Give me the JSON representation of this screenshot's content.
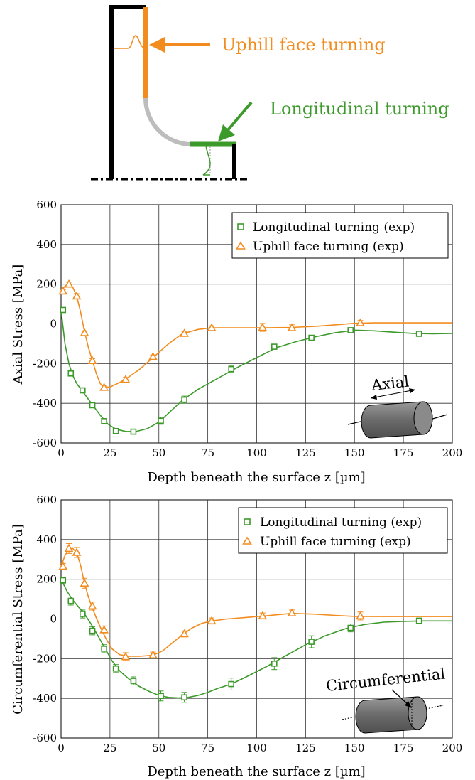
{
  "diagram": {
    "uphill_label": "Uphill face turning",
    "longitudinal_label": "Longitudinal turning",
    "colors": {
      "uphill": "#F28C1E",
      "longitudinal": "#3C9A2B",
      "tool_path": "#BDBDBD",
      "frame": "#000000"
    }
  },
  "chart_data": [
    {
      "type": "line",
      "ylabel": "Axial Stress [MPa]",
      "xlabel": "Depth beneath the surface z [µm]",
      "xlim": [
        0,
        200
      ],
      "ylim": [
        -600,
        600
      ],
      "xticks": [
        "0",
        "25",
        "50",
        "75",
        "100",
        "125",
        "150",
        "175",
        "200"
      ],
      "yticks": [
        "-600",
        "-400",
        "-200",
        "0",
        "200",
        "400",
        "600"
      ],
      "grid": true,
      "legend_position": "top-right",
      "inset_label": "Axial",
      "series": [
        {
          "name": "Longitudinal turning (exp)",
          "marker": "square",
          "color": "#3C9A2B",
          "x": [
            1,
            5,
            11,
            16,
            22,
            28,
            37,
            51,
            63,
            87,
            109,
            128,
            148,
            183
          ],
          "y": [
            70,
            -250,
            -335,
            -410,
            -490,
            -540,
            -543,
            -488,
            -382,
            -228,
            -115,
            -70,
            -32,
            -50
          ],
          "err": [
            8,
            12,
            10,
            10,
            10,
            12,
            12,
            18,
            18,
            18,
            12,
            10,
            8,
            8
          ],
          "fit_x": [
            0,
            2,
            4,
            6,
            8,
            11,
            14,
            17,
            20,
            24,
            28,
            33,
            38,
            44,
            50,
            56,
            62,
            70,
            80,
            90,
            100,
            110,
            120,
            130,
            140,
            150,
            160,
            170,
            180,
            190,
            200
          ],
          "fit_y": [
            70,
            -100,
            -200,
            -260,
            -300,
            -340,
            -380,
            -420,
            -460,
            -505,
            -530,
            -542,
            -543,
            -528,
            -495,
            -440,
            -385,
            -330,
            -275,
            -220,
            -170,
            -120,
            -90,
            -65,
            -45,
            -32,
            -35,
            -42,
            -48,
            -50,
            -48
          ]
        },
        {
          "name": "Uphill face turning (exp)",
          "marker": "triangle",
          "color": "#F28C1E",
          "x": [
            1,
            4,
            8,
            12,
            16,
            22,
            33,
            47,
            63,
            77,
            103,
            118,
            153
          ],
          "y": [
            165,
            200,
            140,
            -45,
            -185,
            -320,
            -280,
            -165,
            -48,
            -20,
            -18,
            -20,
            5
          ],
          "err": [
            8,
            10,
            12,
            10,
            10,
            10,
            10,
            8,
            8,
            10,
            20,
            15,
            12
          ],
          "fit_x": [
            0,
            2,
            4,
            6,
            8,
            10,
            12,
            14,
            16,
            18,
            20,
            22,
            25,
            30,
            35,
            40,
            47,
            55,
            62,
            70,
            77,
            90,
            103,
            118,
            130,
            140,
            150,
            160,
            175,
            200
          ],
          "fit_y": [
            165,
            190,
            200,
            185,
            140,
            60,
            -40,
            -120,
            -185,
            -250,
            -300,
            -320,
            -318,
            -295,
            -265,
            -230,
            -170,
            -100,
            -50,
            -28,
            -20,
            -20,
            -20,
            -18,
            -12,
            -5,
            3,
            5,
            5,
            5
          ]
        }
      ]
    },
    {
      "type": "line",
      "ylabel": "Circumferential Stress [MPa]",
      "xlabel": "Depth beneath the surface z [µm]",
      "xlim": [
        0,
        200
      ],
      "ylim": [
        -600,
        600
      ],
      "xticks": [
        "0",
        "25",
        "50",
        "75",
        "100",
        "125",
        "150",
        "175",
        "200"
      ],
      "yticks": [
        "-600",
        "-400",
        "-200",
        "0",
        "200",
        "400",
        "600"
      ],
      "grid": true,
      "legend_position": "top-right",
      "inset_label": "Circumferential",
      "series": [
        {
          "name": "Longitudinal turning (exp)",
          "marker": "square",
          "color": "#3C9A2B",
          "x": [
            1,
            5,
            11,
            16,
            22,
            28,
            37,
            51,
            63,
            87,
            109,
            128,
            148,
            183
          ],
          "y": [
            195,
            90,
            25,
            -60,
            -150,
            -250,
            -312,
            -388,
            -395,
            -328,
            -225,
            -115,
            -45,
            -10
          ],
          "err": [
            15,
            20,
            20,
            20,
            20,
            20,
            20,
            25,
            25,
            30,
            30,
            30,
            20,
            15
          ],
          "fit_x": [
            0,
            3,
            6,
            9,
            12,
            15,
            18,
            22,
            26,
            30,
            35,
            40,
            45,
            50,
            55,
            60,
            65,
            70,
            75,
            80,
            87,
            95,
            105,
            115,
            125,
            135,
            145,
            155,
            165,
            175,
            185,
            200
          ],
          "fit_y": [
            200,
            140,
            95,
            60,
            25,
            -20,
            -70,
            -140,
            -210,
            -262,
            -305,
            -340,
            -365,
            -385,
            -395,
            -398,
            -395,
            -385,
            -370,
            -350,
            -328,
            -290,
            -240,
            -185,
            -130,
            -85,
            -50,
            -28,
            -16,
            -12,
            -10,
            -10
          ]
        },
        {
          "name": "Uphill face turning (exp)",
          "marker": "triangle",
          "color": "#F28C1E",
          "x": [
            1,
            4,
            8,
            12,
            16,
            22,
            33,
            47,
            63,
            77,
            103,
            118,
            153
          ],
          "y": [
            265,
            355,
            335,
            180,
            65,
            -55,
            -190,
            -182,
            -75,
            -10,
            15,
            30,
            15
          ],
          "err": [
            15,
            25,
            25,
            25,
            20,
            20,
            20,
            15,
            15,
            15,
            15,
            15,
            20
          ],
          "fit_x": [
            0,
            2,
            4,
            6,
            8,
            10,
            12,
            14,
            16,
            18,
            20,
            23,
            26,
            30,
            35,
            40,
            47,
            52,
            57,
            62,
            67,
            72,
            77,
            85,
            95,
            105,
            118,
            130,
            140,
            150,
            165,
            200
          ],
          "fit_y": [
            265,
            320,
            350,
            355,
            335,
            270,
            180,
            110,
            55,
            5,
            -40,
            -100,
            -150,
            -180,
            -188,
            -188,
            -183,
            -160,
            -120,
            -80,
            -45,
            -22,
            -10,
            0,
            8,
            16,
            28,
            24,
            18,
            13,
            12,
            12
          ]
        }
      ]
    }
  ]
}
